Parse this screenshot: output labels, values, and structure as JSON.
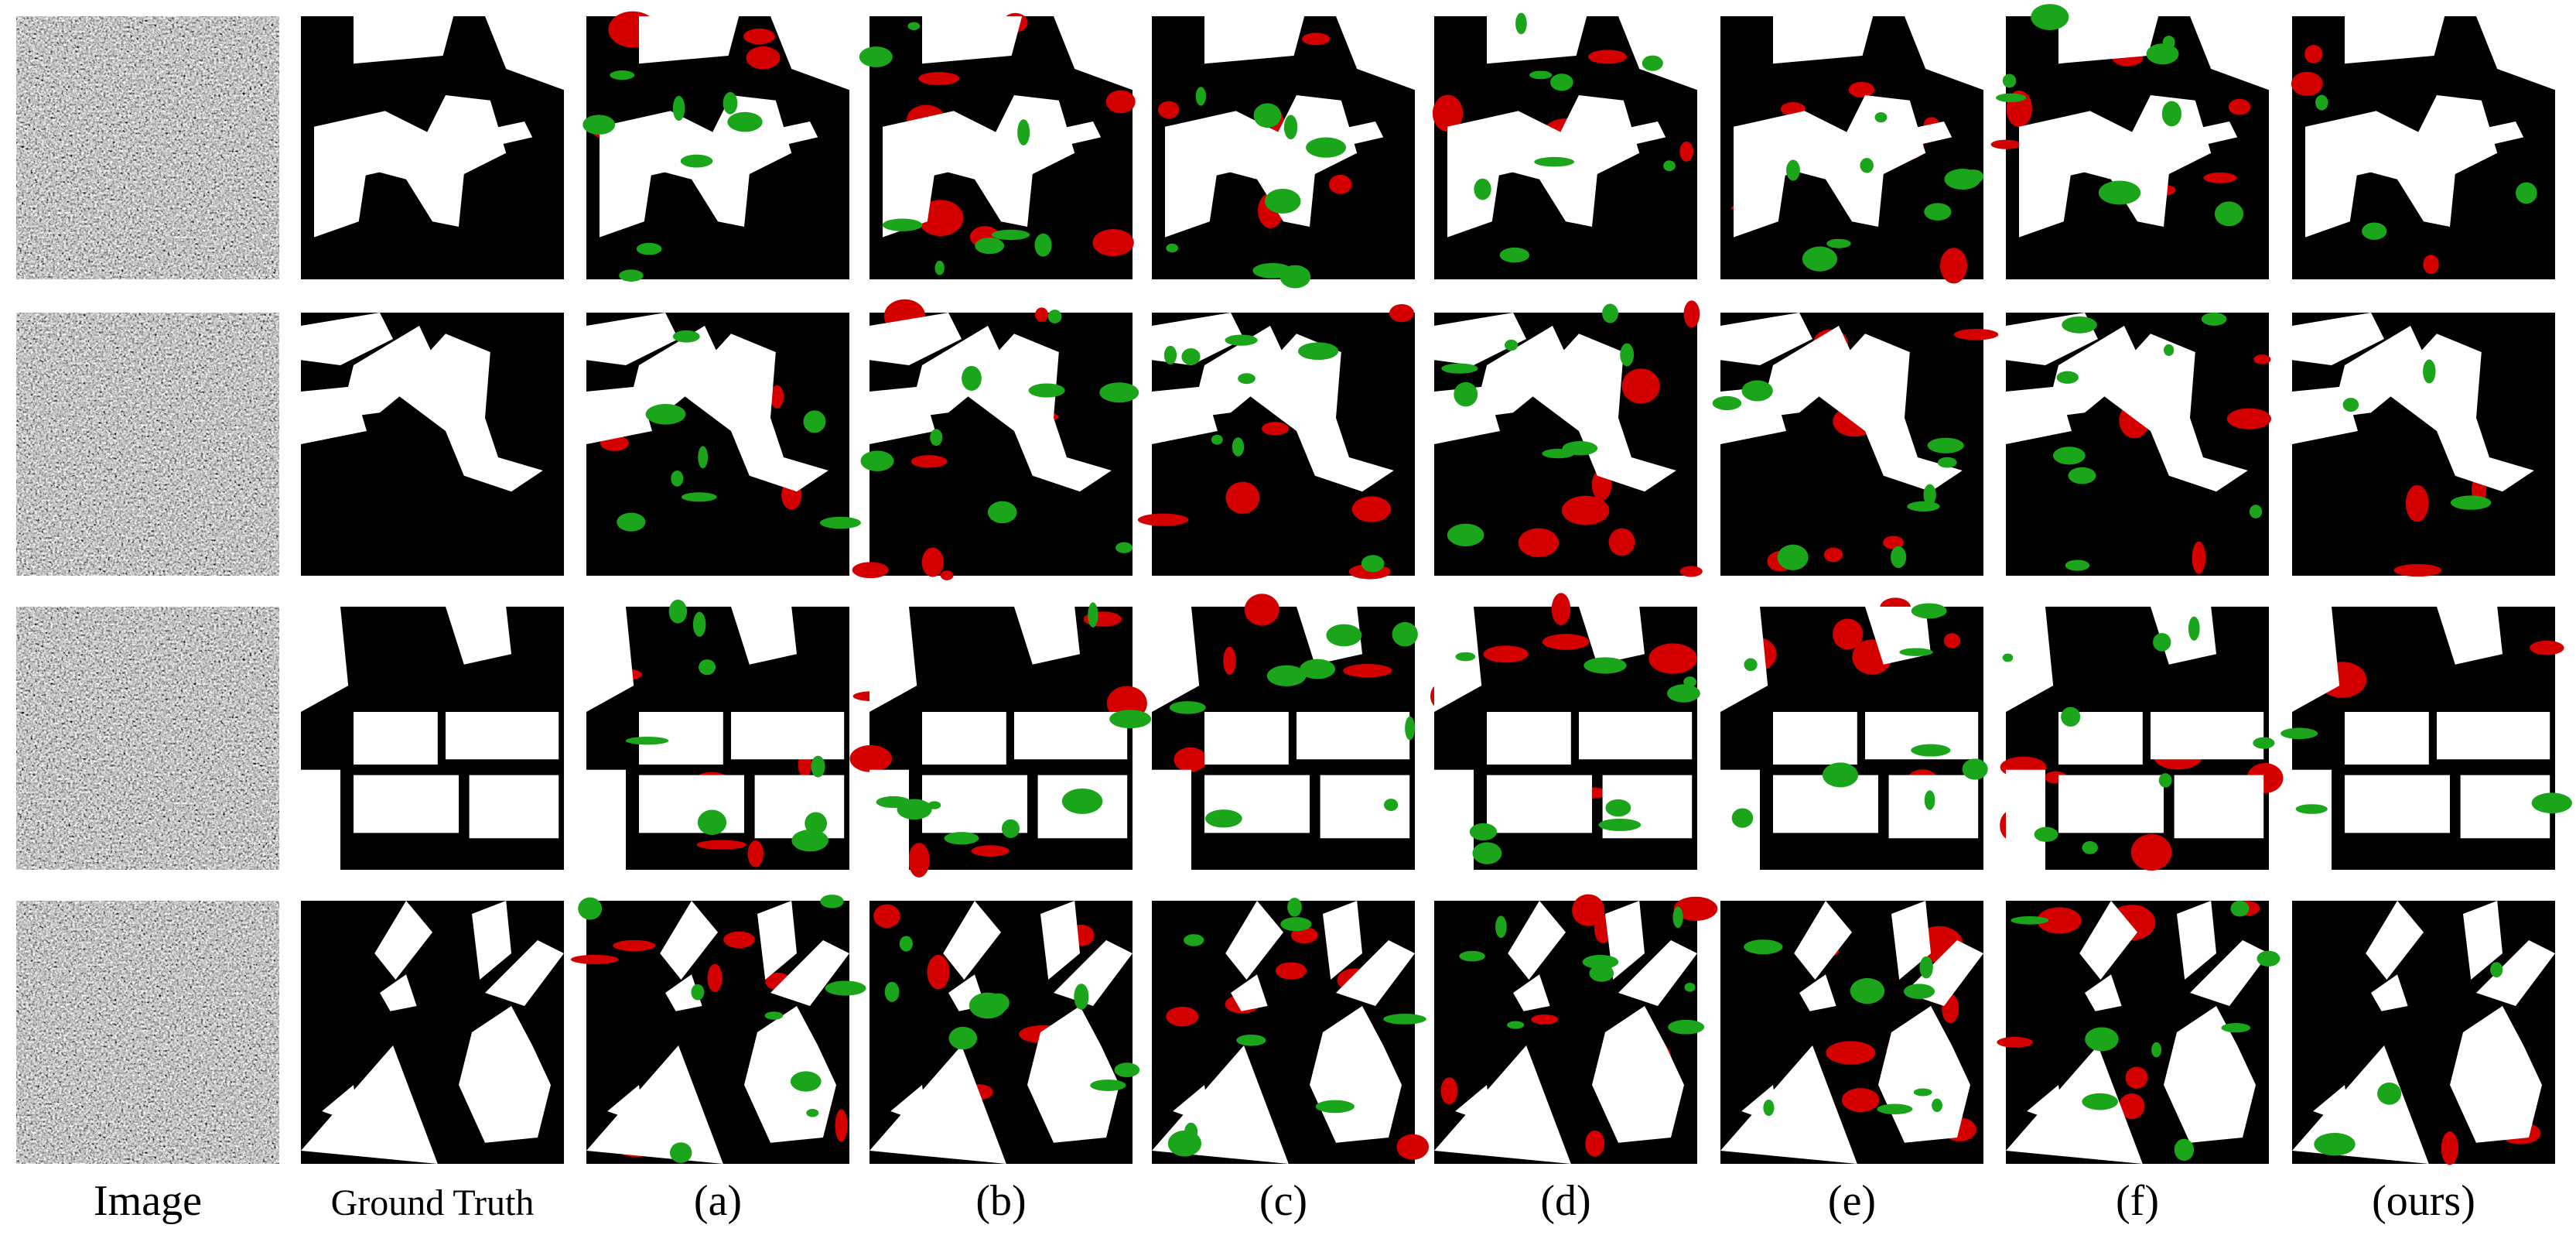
{
  "columns": [
    "Image",
    "Ground Truth",
    "(a)",
    "(b)",
    "(c)",
    "(d)",
    "(e)",
    "(f)",
    "(ours)"
  ]
}
